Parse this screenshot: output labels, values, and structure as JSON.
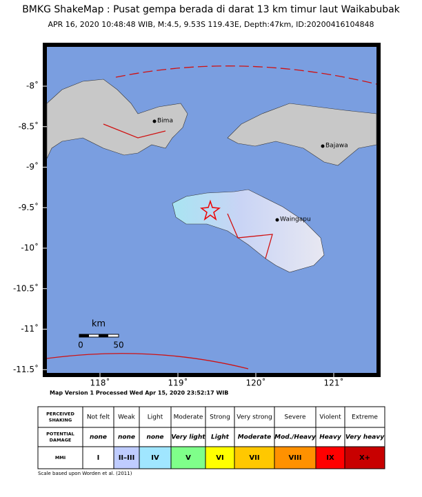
{
  "map": {
    "title": "BMKG ShakeMap : Pusat gempa berada di darat 13 km timur laut Waikabubak",
    "subtitle": "APR 16, 2020 10:48:48 WIB, M:4.5, 9.53S 119.43E, Depth:47km, ID:20200416104848",
    "lon_ticks": [
      {
        "value": 118,
        "label": "118˚"
      },
      {
        "value": 119,
        "label": "119˚"
      },
      {
        "value": 120,
        "label": "120˚"
      },
      {
        "value": 121,
        "label": "121˚"
      }
    ],
    "lat_ticks": [
      {
        "value": -8,
        "label": "-8˚"
      },
      {
        "value": -8.5,
        "label": "-8.5˚"
      },
      {
        "value": -9,
        "label": "-9˚"
      },
      {
        "value": -9.5,
        "label": "-9.5˚"
      },
      {
        "value": -10,
        "label": "-10˚"
      },
      {
        "value": -10.5,
        "label": "-10.5˚"
      },
      {
        "value": -11,
        "label": "-11˚"
      },
      {
        "value": -11.5,
        "label": "-11.5˚"
      }
    ],
    "cities": [
      "Bima",
      "Bajawa",
      "Waingapu"
    ],
    "scale": {
      "unit": "km",
      "ticks": [
        "0",
        "50"
      ]
    },
    "footer": "Map Version 1 Processed Wed Apr 15, 2020 23:52:17 WIB"
  },
  "legend": {
    "row_headers": [
      "PERCEIVED SHAKING",
      "POTENTIAL DAMAGE",
      "MMI"
    ],
    "shaking": [
      "Not felt",
      "Weak",
      "Light",
      "Moderate",
      "Strong",
      "Very strong",
      "Severe",
      "Violent",
      "Extreme"
    ],
    "damage": [
      "none",
      "none",
      "none",
      "Very light",
      "Light",
      "Moderate",
      "Mod./Heavy",
      "Heavy",
      "Very heavy"
    ],
    "mmi": [
      "I",
      "II–III",
      "IV",
      "V",
      "VI",
      "VII",
      "VIII",
      "IX",
      "X+"
    ],
    "colors": [
      "#ffffff",
      "#bfccff",
      "#a0e6ff",
      "#7fff8a",
      "#ffff00",
      "#ffc800",
      "#ff9100",
      "#ff0000",
      "#c80000"
    ],
    "note": "Scale based upon Worden et al. (2011)"
  }
}
